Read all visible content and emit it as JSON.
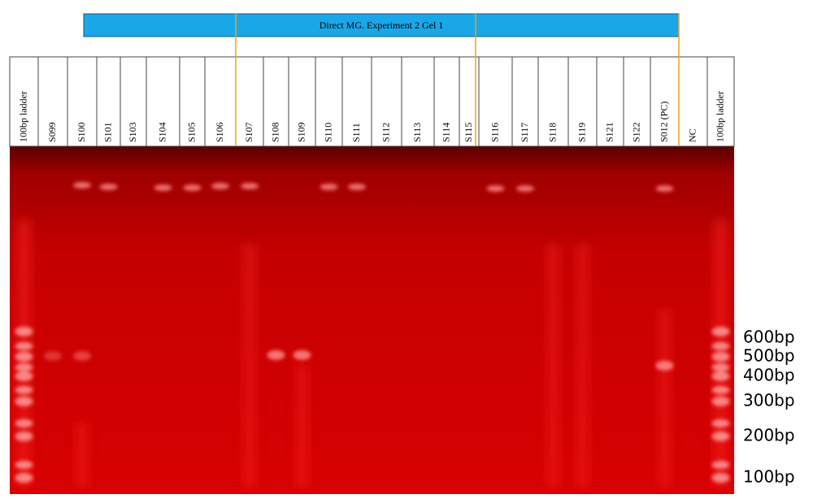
{
  "banner": {
    "text": "Direct MG. Experiment 2 Gel 1"
  },
  "lanes": [
    "100bp ladder",
    "S099",
    "S100",
    "S101",
    "S103",
    "S104",
    "S105",
    "S106",
    "S107",
    "S108",
    "S109",
    "S110",
    "S111",
    "S112",
    "S113",
    "S114",
    "S115",
    "S116",
    "S117",
    "S118",
    "S119",
    "S121",
    "S122",
    "S012 (PC)",
    "NC",
    "100bp ladder"
  ],
  "markers": [
    "600bp",
    "500bp",
    "400bp",
    "300bp",
    "200bp",
    "100bp"
  ]
}
